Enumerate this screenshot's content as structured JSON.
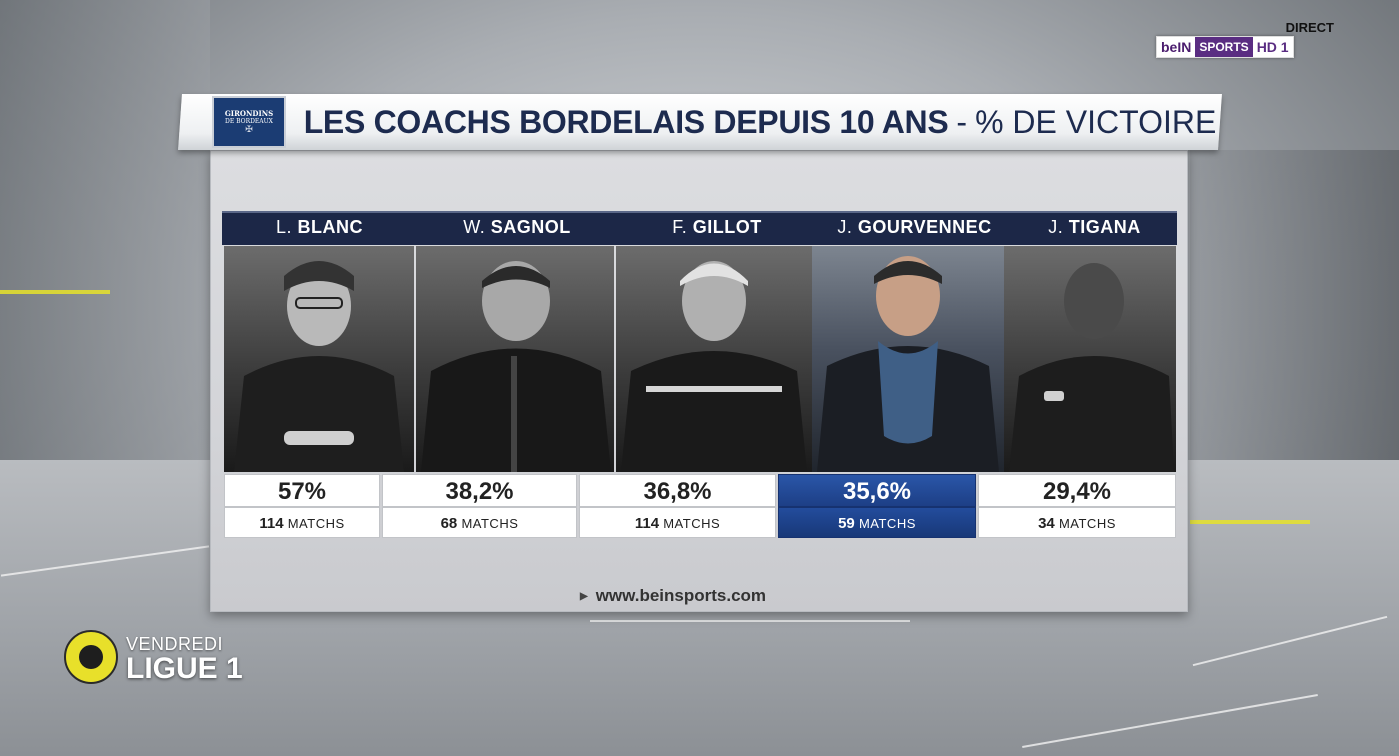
{
  "broadcast": {
    "status": "DIRECT",
    "channel_parts": [
      "beIN",
      "SPORTS",
      "HD 1"
    ]
  },
  "header": {
    "crest_lines": [
      "GIRONDINS",
      "DE BORDEAUX",
      "✠"
    ],
    "title_main": "LES COACHS BORDELAIS DEPUIS 10 ANS",
    "title_sep": "-",
    "title_sub": "% DE VICTOIRE"
  },
  "coaches": [
    {
      "initial": "L.",
      "last": "BLANC",
      "pct": "57%",
      "matches": "114",
      "matches_label": "MATCHS",
      "highlight": false
    },
    {
      "initial": "W.",
      "last": "SAGNOL",
      "pct": "38,2%",
      "matches": "68",
      "matches_label": "MATCHS",
      "highlight": false
    },
    {
      "initial": "F.",
      "last": "GILLOT",
      "pct": "36,8%",
      "matches": "114",
      "matches_label": "MATCHS",
      "highlight": false
    },
    {
      "initial": "J.",
      "last": "GOURVENNEC",
      "pct": "35,6%",
      "matches": "59",
      "matches_label": "MATCHS",
      "highlight": true
    },
    {
      "initial": "J.",
      "last": "TIGANA",
      "pct": "29,4%",
      "matches": "34",
      "matches_label": "MATCHS",
      "highlight": false
    }
  ],
  "footer": {
    "url": "www.beinsports.com"
  },
  "ligue_bug": {
    "day": "VENDREDI",
    "league": "LIGUE 1"
  },
  "colors": {
    "navy": "#1c2747",
    "highlight_blue": "#1d3f86",
    "ligue_yellow": "#e8e02a"
  }
}
